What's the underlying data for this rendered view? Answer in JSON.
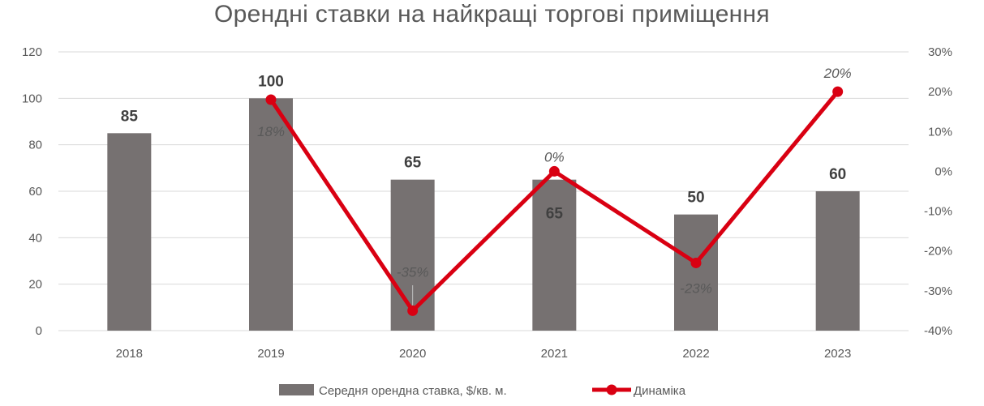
{
  "chart_data": {
    "type": "bar",
    "title": "Орендні ставки на найкращі торгові приміщення",
    "categories": [
      "2018",
      "2019",
      "2020",
      "2021",
      "2022",
      "2023"
    ],
    "series": [
      {
        "name": "Середня орендна ставка, $/кв. м.",
        "type": "bar",
        "axis": "left",
        "values": [
          85,
          100,
          65,
          65,
          50,
          60
        ],
        "labels": [
          "85",
          "100",
          "65",
          "65",
          "50",
          "60"
        ],
        "color": "#767171"
      },
      {
        "name": "Динаміка",
        "type": "line",
        "axis": "right",
        "values": [
          null,
          18,
          -35,
          0,
          -23,
          20
        ],
        "labels": [
          "",
          "18%",
          "-35%",
          "0%",
          "-23%",
          "20%"
        ],
        "color": "#D90012"
      }
    ],
    "y_left": {
      "min": 0,
      "max": 120,
      "ticks": [
        "0",
        "20",
        "40",
        "60",
        "80",
        "100",
        "120"
      ]
    },
    "y_right": {
      "min": -40,
      "max": 30,
      "ticks": [
        "-40%",
        "-30%",
        "-20%",
        "-10%",
        "0%",
        "10%",
        "20%",
        "30%"
      ]
    },
    "grid": true,
    "legend_position": "bottom"
  }
}
